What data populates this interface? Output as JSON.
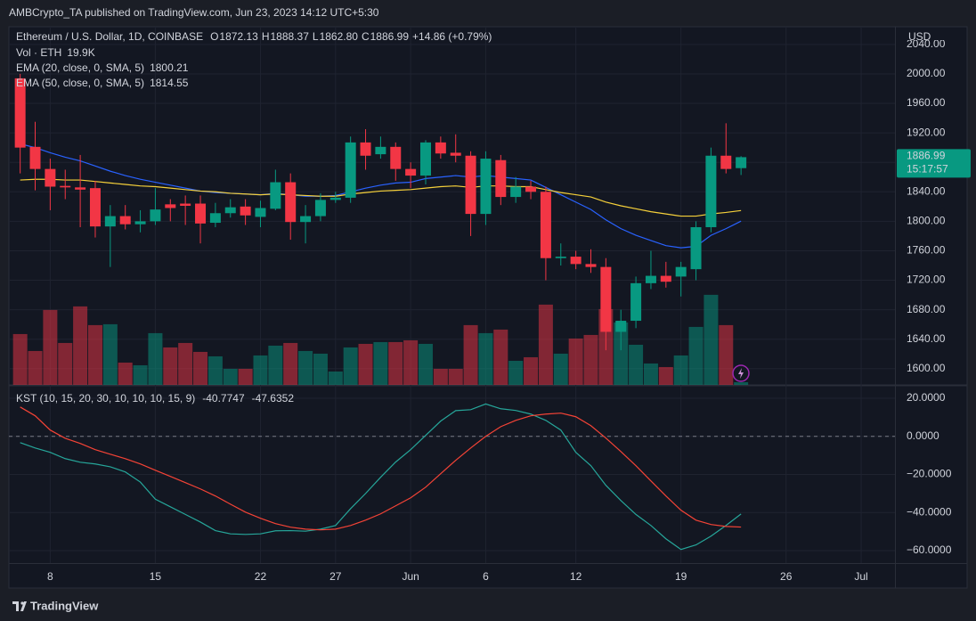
{
  "header": "AMBCrypto_TA published on TradingView.com, Jun 23, 2023 14:12 UTC+5:30",
  "footer": "TradingView",
  "chart_data": [
    {
      "type": "candlestick",
      "title": "Ethereum / U.S. Dollar, 1D, COINBASE",
      "ohlc_legend": [
        {
          "letter": "O",
          "label": "1872.13"
        },
        {
          "letter": "H",
          "label": "1888.37"
        },
        {
          "letter": "L",
          "label": "1862.80"
        },
        {
          "letter": "C",
          "label": "1886.99"
        }
      ],
      "change_label": "+14.86 (+0.79%)",
      "axis_unit": "USD",
      "countdown": "15:17:57",
      "x": [
        "2023-05-06",
        "2023-05-07",
        "2023-05-08",
        "2023-05-09",
        "2023-05-10",
        "2023-05-11",
        "2023-05-12",
        "2023-05-13",
        "2023-05-14",
        "2023-05-15",
        "2023-05-16",
        "2023-05-17",
        "2023-05-18",
        "2023-05-19",
        "2023-05-20",
        "2023-05-21",
        "2023-05-22",
        "2023-05-23",
        "2023-05-24",
        "2023-05-25",
        "2023-05-26",
        "2023-05-27",
        "2023-05-28",
        "2023-05-29",
        "2023-05-30",
        "2023-05-31",
        "2023-06-01",
        "2023-06-02",
        "2023-06-03",
        "2023-06-04",
        "2023-06-05",
        "2023-06-06",
        "2023-06-07",
        "2023-06-08",
        "2023-06-09",
        "2023-06-10",
        "2023-06-11",
        "2023-06-12",
        "2023-06-13",
        "2023-06-14",
        "2023-06-15",
        "2023-06-16",
        "2023-06-17",
        "2023-06-18",
        "2023-06-19",
        "2023-06-20",
        "2023-06-21",
        "2023-06-22",
        "2023-06-23"
      ],
      "open": [
        1994,
        1901,
        1871,
        1848,
        1846,
        1845,
        1793,
        1807,
        1796,
        1800,
        1823,
        1824,
        1824,
        1798,
        1811,
        1820,
        1806,
        1817,
        1853,
        1799,
        1807,
        1829,
        1832,
        1907,
        1891,
        1901,
        1871,
        1862,
        1907,
        1893,
        1889,
        1810,
        1883,
        1833,
        1847,
        1840,
        1750,
        1752,
        1742,
        1738,
        1650,
        1665,
        1716,
        1726,
        1725,
        1735,
        1792,
        1889,
        1872.13
      ],
      "high": [
        2000,
        1935,
        1885,
        1870,
        1890,
        1855,
        1822,
        1822,
        1815,
        1845,
        1830,
        1835,
        1835,
        1825,
        1830,
        1830,
        1828,
        1870,
        1865,
        1822,
        1838,
        1840,
        1915,
        1925,
        1915,
        1907,
        1880,
        1910,
        1915,
        1918,
        1895,
        1895,
        1890,
        1860,
        1855,
        1847,
        1770,
        1760,
        1762,
        1750,
        1680,
        1725,
        1760,
        1745,
        1745,
        1800,
        1900,
        1933,
        1888.37
      ],
      "low": [
        1865,
        1842,
        1815,
        1830,
        1792,
        1778,
        1738,
        1789,
        1785,
        1795,
        1800,
        1795,
        1770,
        1792,
        1805,
        1795,
        1792,
        1815,
        1775,
        1770,
        1800,
        1825,
        1825,
        1870,
        1885,
        1855,
        1845,
        1850,
        1885,
        1880,
        1780,
        1795,
        1822,
        1825,
        1830,
        1720,
        1740,
        1735,
        1730,
        1625,
        1625,
        1655,
        1708,
        1710,
        1698,
        1720,
        1785,
        1865,
        1862.8
      ],
      "close": [
        1900,
        1871,
        1847,
        1846,
        1843,
        1793,
        1807,
        1796,
        1800,
        1816,
        1818,
        1821,
        1797,
        1811,
        1819,
        1808,
        1818,
        1853,
        1799,
        1807,
        1829,
        1832,
        1907,
        1889,
        1901,
        1871,
        1862,
        1907,
        1892,
        1889,
        1810,
        1885,
        1833,
        1847,
        1840,
        1750,
        1752,
        1742,
        1738,
        1650,
        1665,
        1716,
        1726,
        1718,
        1738,
        1792,
        1889,
        1871,
        1886.99
      ],
      "up_color": "#089981",
      "down_color": "#f23645",
      "volume": {
        "name": "Vol · ETH",
        "last_label": "19.9K",
        "values": [
          376200,
          250800,
          554400,
          310200,
          580800,
          442200,
          448800,
          165000,
          145200,
          382800,
          277200,
          310200,
          244200,
          211200,
          118800,
          118800,
          217800,
          290400,
          310200,
          250800,
          231000,
          99000,
          277200,
          303600,
          316800,
          316800,
          330000,
          303600,
          118800,
          118800,
          442200,
          382800,
          409200,
          178200,
          204600,
          594000,
          231000,
          343200,
          369600,
          561000,
          462000,
          297000,
          158400,
          132000,
          217800,
          429000,
          666600,
          442200,
          19900
        ],
        "ylim": [
          0,
          2650000
        ],
        "up_color": "rgba(8,153,129,0.5)",
        "down_color": "rgba(242,54,69,0.5)"
      },
      "series": [
        {
          "name": "EMA (20, close, 0, SMA, 5)",
          "color": "#2962ff",
          "values": [
            1905,
            1900,
            1893,
            1887,
            1882,
            1875,
            1868,
            1862,
            1857,
            1853,
            1849,
            1845,
            1841,
            1839,
            1838,
            1837,
            1836,
            1838,
            1836,
            1834,
            1834,
            1835,
            1840,
            1845,
            1849,
            1852,
            1853,
            1858,
            1860,
            1862,
            1860,
            1862,
            1860,
            1858,
            1856,
            1846,
            1836,
            1826,
            1816,
            1802,
            1790,
            1781,
            1774,
            1767,
            1764,
            1766,
            1781,
            1790,
            1800.21
          ]
        },
        {
          "name": "EMA (50, close, 0, SMA, 5)",
          "color": "#f5d03a",
          "values": [
            1856,
            1857,
            1857,
            1856,
            1856,
            1854,
            1852,
            1850,
            1848,
            1847,
            1845,
            1843,
            1841,
            1840,
            1838,
            1837,
            1836,
            1837,
            1836,
            1835,
            1834,
            1834,
            1837,
            1839,
            1841,
            1842,
            1843,
            1845,
            1847,
            1848,
            1846,
            1848,
            1848,
            1847,
            1847,
            1843,
            1839,
            1836,
            1833,
            1826,
            1821,
            1817,
            1813,
            1810,
            1807,
            1807,
            1810,
            1812,
            1814.55
          ]
        }
      ],
      "xlim": [
        "2023-05-05T06:00:00Z",
        "2023-07-03T06:00:00Z"
      ],
      "xticks": [
        {
          "value": "2023-05-08",
          "label": "8"
        },
        {
          "value": "2023-05-15",
          "label": "15"
        },
        {
          "value": "2023-05-22",
          "label": "22"
        },
        {
          "value": "2023-05-27",
          "label": "27"
        },
        {
          "value": "2023-06-01",
          "label": "Jun"
        },
        {
          "value": "2023-06-06",
          "label": "6"
        },
        {
          "value": "2023-06-12",
          "label": "12"
        },
        {
          "value": "2023-06-19",
          "label": "19"
        },
        {
          "value": "2023-06-26",
          "label": "26"
        },
        {
          "value": "2023-07-01",
          "label": "Jul"
        }
      ],
      "ylim": [
        1578,
        2064
      ],
      "yticks": [
        {
          "value": 1600,
          "label": "1600.00"
        },
        {
          "value": 1640,
          "label": "1640.00"
        },
        {
          "value": 1680,
          "label": "1680.00"
        },
        {
          "value": 1720,
          "label": "1720.00"
        },
        {
          "value": 1760,
          "label": "1760.00"
        },
        {
          "value": 1800,
          "label": "1800.00"
        },
        {
          "value": 1840,
          "label": "1840.00"
        },
        {
          "value": 1880,
          "label": "1880.00"
        },
        {
          "value": 1920,
          "label": "1920.00"
        },
        {
          "value": 1960,
          "label": "1960.00"
        },
        {
          "value": 2000,
          "label": "2000.00"
        },
        {
          "value": 2040,
          "label": "2040.00"
        }
      ],
      "grid": true
    },
    {
      "type": "line",
      "title": "KST (10, 15, 20, 30, 10, 10, 10, 15, 9)",
      "x": [
        "2023-05-06",
        "2023-05-07",
        "2023-05-08",
        "2023-05-09",
        "2023-05-10",
        "2023-05-11",
        "2023-05-12",
        "2023-05-13",
        "2023-05-14",
        "2023-05-15",
        "2023-05-16",
        "2023-05-17",
        "2023-05-18",
        "2023-05-19",
        "2023-05-20",
        "2023-05-21",
        "2023-05-22",
        "2023-05-23",
        "2023-05-24",
        "2023-05-25",
        "2023-05-26",
        "2023-05-27",
        "2023-05-28",
        "2023-05-29",
        "2023-05-30",
        "2023-05-31",
        "2023-06-01",
        "2023-06-02",
        "2023-06-03",
        "2023-06-04",
        "2023-06-05",
        "2023-06-06",
        "2023-06-07",
        "2023-06-08",
        "2023-06-09",
        "2023-06-10",
        "2023-06-11",
        "2023-06-12",
        "2023-06-13",
        "2023-06-14",
        "2023-06-15",
        "2023-06-16",
        "2023-06-17",
        "2023-06-18",
        "2023-06-19",
        "2023-06-20",
        "2023-06-21",
        "2023-06-22",
        "2023-06-23"
      ],
      "series": [
        {
          "color": "#26a69a",
          "values": [
            -3.3,
            -6.1,
            -8.4,
            -11.7,
            -13.6,
            -14.5,
            -16,
            -18.7,
            -24,
            -33,
            -37,
            -41,
            -45,
            -49.5,
            -51.2,
            -51.5,
            -51.2,
            -49.6,
            -49.5,
            -49.8,
            -48.7,
            -46.8,
            -38,
            -30,
            -21.5,
            -13.5,
            -7,
            0.5,
            8,
            13.5,
            14,
            17,
            14.5,
            13.6,
            11.7,
            8.4,
            3.3,
            -8.4,
            -15.4,
            -25.7,
            -33.7,
            -41,
            -46.8,
            -53.8,
            -59.4,
            -57,
            -52.4,
            -46.8,
            -40.7747
          ]
        },
        {
          "color": "#f44336",
          "values": [
            15.4,
            10.8,
            3.3,
            -1,
            -3.7,
            -7,
            -9.4,
            -11.7,
            -14.5,
            -17.8,
            -21,
            -24.3,
            -27.6,
            -31.3,
            -35.6,
            -39.8,
            -43,
            -45.8,
            -47.7,
            -48.7,
            -49.1,
            -48.7,
            -46.8,
            -44,
            -40.7,
            -36.5,
            -32.3,
            -26.7,
            -19.6,
            -12.6,
            -6.1,
            0,
            5.1,
            8.4,
            10.8,
            11.7,
            12.2,
            10.3,
            5.6,
            -0.9,
            -8,
            -15.4,
            -23.4,
            -31.3,
            -38.8,
            -44,
            -46.3,
            -47.3,
            -47.6352
          ]
        }
      ],
      "ylim": [
        -66.55,
        26.55
      ],
      "yticks": [
        {
          "value": 20,
          "label": "20.0000"
        },
        {
          "value": 0,
          "label": "0.0000"
        },
        {
          "value": -20,
          "label": "−20.0000"
        },
        {
          "value": -40,
          "label": "−40.0000"
        },
        {
          "value": -60,
          "label": "−60.0000"
        }
      ],
      "zero_line": true,
      "grid": true
    }
  ]
}
